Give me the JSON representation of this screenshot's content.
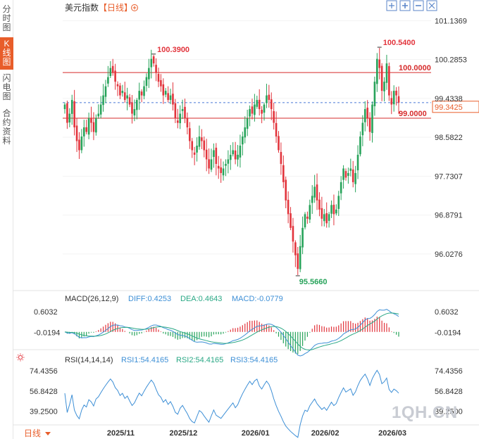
{
  "sidebar": {
    "tabs": [
      {
        "label": "分时图",
        "active": false
      },
      {
        "label": "K线图",
        "active": true
      },
      {
        "label": "闪电图",
        "active": false
      },
      {
        "label": "合约资料",
        "active": false
      }
    ]
  },
  "header": {
    "instrument": "美元指数",
    "period_label": "【日线】",
    "add_icon": "plus-circle-icon",
    "toolbar_icons": [
      "zoom-fit-icon",
      "zoom-in-icon",
      "zoom-out-icon",
      "expand-icon"
    ]
  },
  "footer": {
    "period_select": "日线",
    "period_arrow": "triangle-down-icon",
    "x_labels": [
      "2025/11",
      "2025/12",
      "2026/01",
      "2026/02",
      "2026/03"
    ]
  },
  "watermark": "1QH.CN",
  "colors": {
    "up": "#27a35a",
    "down": "#e2343c",
    "hline": "#d62b2b",
    "current": "#4a78d8",
    "diff": "#3d8fd6",
    "dea": "#2aa885",
    "rsi": "#3d8fd6",
    "annotation_high": "#e2343c",
    "annotation_low": "#27a35a",
    "period_label": "#e85d2a"
  },
  "chart_data": [
    {
      "type": "candlestick",
      "y_ticks": [
        "101.1369",
        "100.2853",
        "99.4338",
        "98.5822",
        "97.7307",
        "96.8791",
        "96.0276"
      ],
      "ylim": [
        95.35,
        101.25
      ],
      "horizontal_lines": [
        {
          "value": 100.0,
          "label": "100.0000"
        },
        {
          "value": 99.0,
          "label": "99.0000"
        }
      ],
      "current_price": {
        "value": 99.3425,
        "label": "99.3425"
      },
      "annotations": [
        {
          "label": "100.3900",
          "value": 100.39,
          "kind": "high",
          "index": 37
        },
        {
          "label": "100.5400",
          "value": 100.54,
          "kind": "high",
          "index": 131
        },
        {
          "label": "95.5660",
          "value": 95.566,
          "kind": "low",
          "index": 97
        }
      ],
      "closes": [
        99.3,
        98.9,
        99.1,
        99.4,
        98.8,
        98.5,
        98.3,
        98.6,
        98.8,
        98.7,
        99.0,
        98.9,
        98.7,
        99.0,
        99.1,
        99.3,
        99.5,
        99.7,
        99.9,
        100.1,
        100.0,
        99.8,
        99.7,
        99.5,
        99.6,
        99.4,
        99.5,
        99.3,
        99.1,
        99.2,
        99.4,
        99.6,
        99.5,
        99.7,
        99.9,
        100.1,
        100.3,
        100.2,
        100.0,
        99.8,
        99.7,
        99.5,
        99.6,
        99.4,
        99.5,
        99.3,
        99.0,
        98.9,
        99.1,
        99.2,
        99.0,
        98.8,
        98.5,
        98.3,
        98.2,
        98.4,
        98.6,
        98.5,
        98.3,
        98.1,
        97.9,
        98.1,
        98.3,
        98.0,
        97.9,
        97.8,
        97.9,
        98.0,
        98.1,
        98.2,
        98.3,
        98.1,
        98.2,
        98.4,
        98.6,
        98.8,
        99.0,
        99.2,
        99.1,
        99.3,
        99.4,
        99.2,
        99.1,
        99.3,
        99.5,
        99.4,
        99.2,
        98.9,
        98.6,
        98.3,
        98.0,
        97.6,
        97.2,
        96.9,
        96.6,
        96.3,
        96.0,
        95.7,
        96.2,
        96.6,
        96.9,
        96.8,
        97.1,
        97.3,
        97.5,
        97.2,
        97.0,
        96.8,
        96.9,
        96.7,
        96.9,
        97.1,
        96.9,
        97.0,
        97.3,
        97.6,
        97.9,
        97.7,
        97.8,
        97.9,
        97.6,
        97.8,
        98.2,
        98.6,
        98.9,
        99.2,
        99.0,
        98.7,
        99.3,
        99.8,
        100.3,
        100.1,
        99.6,
        99.8,
        100.2,
        99.5,
        99.3,
        99.6,
        99.5,
        99.34
      ],
      "macd": {
        "label": "MACD(26,12,9)",
        "diff_label": "DIFF:0.4253",
        "dea_label": "DEA:0.4643",
        "macd_label": "MACD:-0.0779",
        "y_ticks": [
          "0.6032",
          "-0.0194"
        ],
        "ylim": [
          -0.55,
          0.75
        ]
      },
      "rsi": {
        "label": "RSI(14,14,14)",
        "rsi1_label": "RSI1:54.4165",
        "rsi2_label": "RSI2:54.4165",
        "rsi3_label": "RSI3:54.4165",
        "y_ticks": [
          "74.4356",
          "56.8428",
          "39.2500"
        ],
        "ylim": [
          28,
          80
        ],
        "settings_icon": "sun-gear-icon"
      }
    }
  ]
}
